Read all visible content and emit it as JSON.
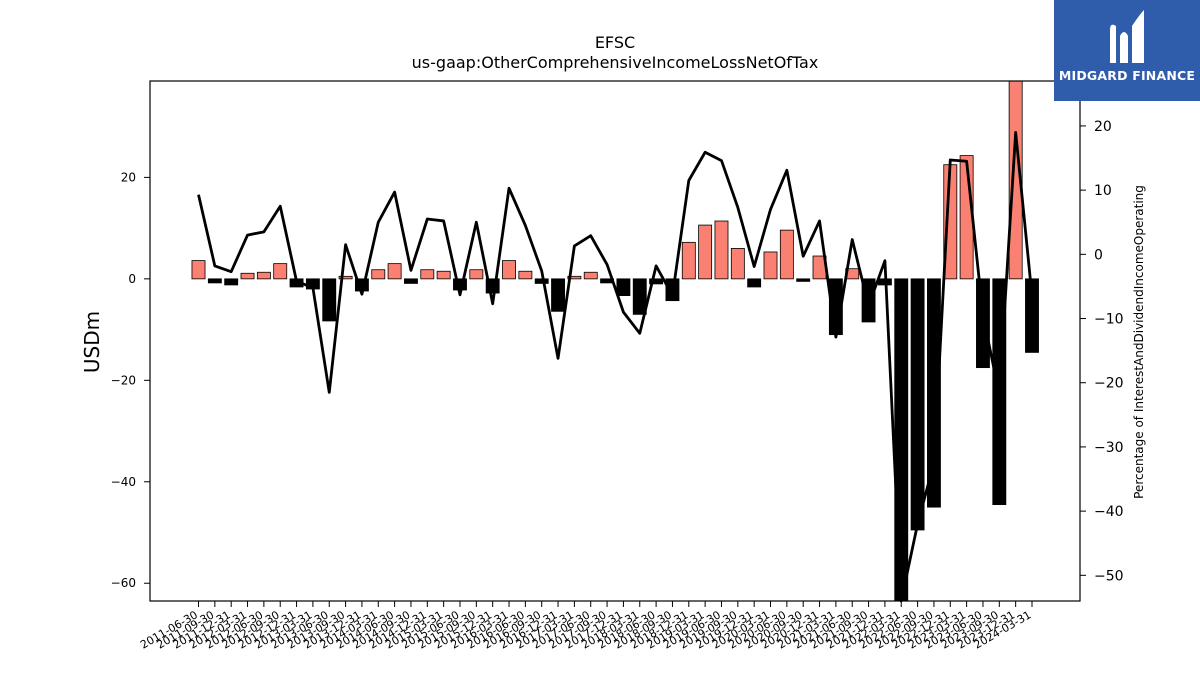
{
  "chart_data": {
    "type": "bar+line",
    "title": "EFSC",
    "subtitle": "us-gaap:OtherComprehensiveIncomeLossNetOfTax",
    "ylabel_left": "USDm",
    "ylabel_right": "Percentage of InterestAndDividendIncomeOperating",
    "ylim_left": [
      -63.5,
      39.0
    ],
    "ylim_right": [
      -54.0,
      27.0
    ],
    "yticks_left": [
      20,
      0,
      -20,
      -40,
      -60
    ],
    "yticks_right": [
      20,
      10,
      0,
      -10,
      -20,
      -30,
      -40,
      -50
    ],
    "colors": {
      "positive": "#fa8072",
      "negative": "#000000",
      "line": "#000000"
    },
    "categories": [
      "2011-06-30",
      "2011-09-30",
      "2011-12-31",
      "2012-03-31",
      "2012-06-30",
      "2012-09-30",
      "2012-12-31",
      "2013-03-31",
      "2013-06-30",
      "2013-09-30",
      "2013-12-31",
      "2014-03-31",
      "2014-06-30",
      "2014-09-30",
      "2014-12-31",
      "2015-03-31",
      "2015-06-30",
      "2015-09-30",
      "2015-12-31",
      "2016-03-31",
      "2016-06-30",
      "2016-09-30",
      "2016-12-31",
      "2017-03-31",
      "2017-06-30",
      "2017-09-30",
      "2017-12-31",
      "2018-03-31",
      "2018-06-30",
      "2018-09-30",
      "2018-12-31",
      "2019-03-31",
      "2019-06-30",
      "2019-09-30",
      "2019-12-31",
      "2020-03-31",
      "2020-06-30",
      "2020-09-30",
      "2020-12-31",
      "2021-03-31",
      "2021-06-30",
      "2021-09-30",
      "2021-12-31",
      "2022-03-31",
      "2022-06-30",
      "2022-09-30",
      "2022-12-31",
      "2023-03-31",
      "2023-06-30",
      "2023-09-30",
      "2023-12-31",
      "2024-03-31"
    ],
    "bars": [
      3.6,
      -0.8,
      -1.2,
      1.1,
      1.3,
      3.0,
      -1.6,
      -2.0,
      -8.3,
      0.5,
      -2.4,
      1.8,
      3.0,
      -0.9,
      1.8,
      1.5,
      -2.2,
      1.8,
      -2.8,
      3.6,
      1.5,
      -0.9,
      -6.4,
      0.5,
      1.3,
      -0.8,
      -3.3,
      -7.0,
      -1.0,
      -4.3,
      7.2,
      10.6,
      11.4,
      6.0,
      -1.6,
      5.3,
      9.6,
      -0.5,
      4.5,
      -11.0,
      2.0,
      -8.5,
      -1.2,
      -66.0,
      -49.5,
      -45.0,
      22.5,
      24.3,
      -17.5,
      -44.5,
      39.0,
      -14.5
    ],
    "line": [
      9.3,
      -1.8,
      -2.7,
      3.0,
      3.5,
      7.5,
      -4.2,
      -5.2,
      -21.5,
      1.5,
      -6.2,
      5.0,
      9.7,
      -2.5,
      5.5,
      5.2,
      -6.3,
      5.0,
      -7.7,
      10.3,
      4.5,
      -2.6,
      -16.2,
      1.3,
      2.9,
      -1.6,
      -9.0,
      -12.3,
      -1.8,
      -6.4,
      11.5,
      15.9,
      14.6,
      7.3,
      -1.9,
      7.0,
      13.1,
      -0.3,
      5.2,
      -12.9,
      2.3,
      -8.0,
      -1.0,
      -56.0,
      -42.0,
      -32.5,
      14.7,
      14.5,
      -9.5,
      -21.8,
      19.0,
      -6.5
    ]
  },
  "logo": {
    "text": "MIDGARD FINANCE"
  }
}
